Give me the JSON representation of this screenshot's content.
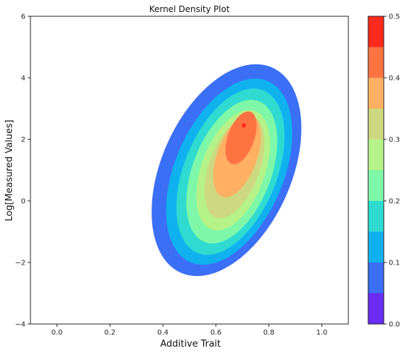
{
  "chart_data": {
    "type": "contour",
    "title": "Kernel Density Plot",
    "xlabel": "Additive Trait",
    "ylabel": "Log[Measured Values]",
    "xlim": [
      -0.1,
      1.1
    ],
    "ylim": [
      -4,
      6
    ],
    "x_ticks": [
      "0.0",
      "0.2",
      "0.4",
      "0.6",
      "0.8",
      "1.0"
    ],
    "y_ticks": [
      "6",
      "4",
      "2",
      "0",
      "−2",
      "−4"
    ],
    "grid": false,
    "colorbar": {
      "range": [
        0.0,
        0.5
      ],
      "tick_labels": [
        "0.5",
        "0.4",
        "0.3",
        "0.2",
        "0.1",
        "0.0"
      ],
      "levels": [
        0.0,
        0.05,
        0.1,
        0.15,
        0.2,
        0.25,
        0.3,
        0.35,
        0.4,
        0.45,
        0.5
      ],
      "colors": [
        "#6a2cf6",
        "#3b6ff5",
        "#0fb2ee",
        "#2fdbd1",
        "#7ef8a8",
        "#b5f288",
        "#ced881",
        "#ffb062",
        "#ff7343",
        "#ff2a1d"
      ]
    },
    "density_regions": [
      {
        "level": 0.05,
        "center": [
          0.64,
          1.0
        ],
        "half_width": 0.245,
        "half_height": 3.65,
        "tilt_deg": 24
      },
      {
        "level": 0.1,
        "center": [
          0.65,
          0.95
        ],
        "half_width": 0.205,
        "half_height": 3.2,
        "tilt_deg": 23
      },
      {
        "level": 0.15,
        "center": [
          0.655,
          0.95
        ],
        "half_width": 0.175,
        "half_height": 2.85,
        "tilt_deg": 22
      },
      {
        "level": 0.2,
        "center": [
          0.66,
          0.95
        ],
        "half_width": 0.148,
        "half_height": 2.45,
        "tilt_deg": 21
      },
      {
        "level": 0.25,
        "center": [
          0.665,
          1.0
        ],
        "half_width": 0.12,
        "half_height": 2.05,
        "tilt_deg": 20
      },
      {
        "level": 0.3,
        "center": [
          0.67,
          1.1
        ],
        "half_width": 0.095,
        "half_height": 1.75,
        "tilt_deg": 20
      },
      {
        "level": 0.35,
        "center": [
          0.68,
          1.45
        ],
        "half_width": 0.075,
        "half_height": 1.4,
        "tilt_deg": 20
      },
      {
        "level": 0.4,
        "center": [
          0.695,
          2.05
        ],
        "half_width": 0.05,
        "half_height": 0.9,
        "tilt_deg": 20
      },
      {
        "level": 0.45,
        "center": [
          0.705,
          2.45
        ],
        "half_width": 0.008,
        "half_height": 0.07,
        "tilt_deg": 0
      }
    ]
  }
}
